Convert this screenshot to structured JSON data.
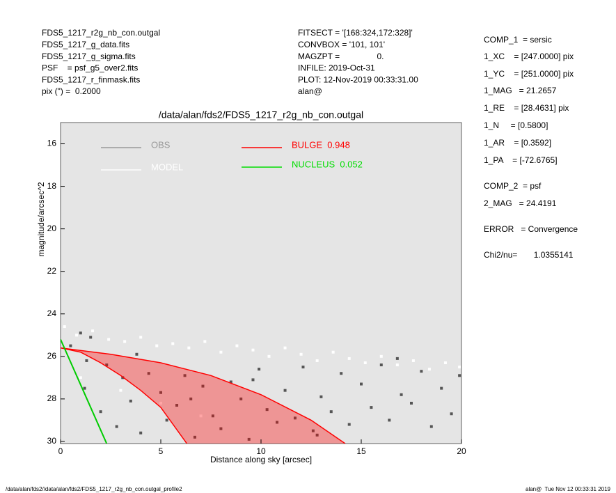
{
  "header": {
    "left": [
      "FDS5_1217_r2g_nb_con.outgal",
      "FDS5_1217_g_data.fits",
      "FDS5_1217_g_sigma.fits",
      "PSF    = psf_g5_over2.fits",
      "FDS5_1217_r_finmask.fits",
      "pix (\") =  0.2000"
    ],
    "middle": [
      "FITSECT = '[168:324,172:328]'",
      "CONVBOX = '101, 101'",
      "MAGZPT =                0.",
      "INFILE: 2019-Oct-31",
      "PLOT: 12-Nov-2019 00:33:31.00",
      "alan@"
    ],
    "right": [
      "COMP_1  = sersic",
      "1_XC    = [247.0000] pix",
      "1_YC    = [251.0000] pix",
      "1_MAG   = 21.2657",
      "1_RE    = [28.4631] pix",
      "1_N     = [0.5800]",
      "1_AR    = [0.3592]",
      "1_PA    = [-72.6765]",
      "COMP_2  = psf",
      "2_MAG   = 24.4191",
      "ERROR   = Convergence",
      "Chi2/nu=       1.0355141"
    ]
  },
  "footer": {
    "left": "/data/alan/fds2//data/alan/fds2/FDS5_1217_r2g_nb_con.outgal_profile2",
    "right": "alan@  Tue Nov 12 00:33:31 2019"
  },
  "chart_data": {
    "type": "scatter",
    "title": "/data/alan/fds2/FDS5_1217_r2g_nb_con.outgal",
    "x_label": "Distance along sky [arcsec]",
    "y_label": "magnitude/arcsec^2",
    "xlim": [
      0,
      20
    ],
    "xticks": [
      0,
      5,
      10,
      15,
      20
    ],
    "ylim": [
      30.1,
      15
    ],
    "yticks": [
      16,
      18,
      20,
      22,
      24,
      26,
      28,
      30
    ],
    "background": "#e5e5e5",
    "series": [
      {
        "name": "OBS",
        "color": "#555555",
        "legend_color": "#999999",
        "kind": "points",
        "x": [
          0.5,
          1.0,
          1.2,
          1.5,
          2.0,
          2.3,
          2.8,
          3.1,
          3.5,
          4.0,
          4.4,
          5.0,
          5.3,
          5.8,
          6.2,
          6.7,
          7.1,
          7.6,
          8.0,
          8.5,
          9.0,
          9.4,
          9.9,
          10.3,
          10.8,
          11.2,
          11.7,
          12.1,
          12.6,
          13.0,
          13.5,
          14.0,
          14.4,
          15.0,
          15.5,
          16.0,
          16.4,
          17.0,
          17.5,
          18.0,
          18.5,
          19.0,
          19.5,
          19.9,
          1.3,
          3.8,
          6.5,
          9.6,
          12.8,
          16.8
        ],
        "values": [
          25.5,
          24.9,
          27.5,
          25.1,
          28.6,
          26.4,
          29.3,
          27.0,
          28.1,
          29.6,
          26.8,
          27.7,
          29.0,
          28.3,
          26.9,
          29.8,
          27.4,
          28.8,
          29.4,
          27.2,
          28.0,
          29.9,
          26.6,
          28.5,
          29.1,
          27.6,
          28.9,
          26.5,
          29.5,
          27.9,
          28.6,
          26.8,
          29.2,
          27.3,
          28.4,
          26.4,
          29.0,
          27.8,
          28.2,
          26.7,
          29.3,
          27.5,
          28.7,
          26.9,
          26.2,
          25.9,
          28.0,
          27.1,
          29.7,
          26.1
        ]
      },
      {
        "name": "MODEL",
        "color": "#ffffff",
        "legend_color": "#ffffff",
        "kind": "points",
        "x": [
          0.2,
          0.8,
          1.6,
          2.4,
          3.2,
          4.0,
          4.8,
          5.6,
          6.4,
          7.2,
          8.0,
          8.8,
          9.6,
          10.4,
          11.2,
          12.0,
          12.8,
          13.6,
          14.4,
          15.2,
          16.0,
          16.8,
          17.6,
          18.4,
          19.2,
          19.9,
          1.0,
          3.0,
          5.0,
          7.0
        ],
        "values": [
          24.6,
          25.0,
          24.8,
          25.2,
          25.3,
          25.1,
          25.5,
          25.4,
          25.6,
          25.3,
          25.8,
          25.5,
          25.7,
          26.0,
          25.6,
          25.9,
          26.2,
          25.8,
          26.1,
          26.3,
          26.0,
          26.4,
          26.2,
          26.6,
          26.3,
          26.5,
          27.0,
          27.6,
          28.2,
          28.8
        ]
      },
      {
        "name": "BULGE  0.948",
        "color": "#ff0000",
        "legend_color": "#ff0000",
        "kind": "band",
        "x": [
          0,
          2.5,
          5,
          7.5,
          10,
          12.5,
          14.2
        ],
        "values": [
          25.6,
          25.9,
          26.3,
          26.9,
          27.8,
          29.0,
          30.1
        ],
        "x_inner": [
          0,
          1,
          2,
          3,
          4,
          5,
          6.3
        ],
        "values_inner": [
          25.6,
          25.8,
          26.3,
          26.9,
          27.6,
          28.4,
          30.1
        ]
      },
      {
        "name": "NUCLEUS  0.052",
        "color": "#00cc00",
        "legend_color": "#00dd00",
        "kind": "line",
        "x": [
          0,
          2.3
        ],
        "values": [
          25.2,
          30.1
        ]
      }
    ]
  }
}
